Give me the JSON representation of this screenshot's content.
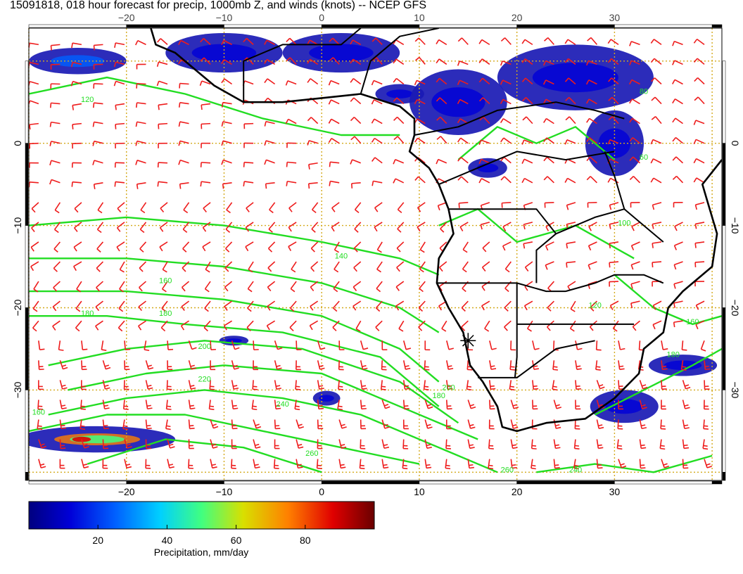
{
  "title": "15091818, 018 hour forecast for precip, 1000mb Z, and winds (knots) -- NCEP GFS",
  "map": {
    "lon_range": [
      -30,
      41
    ],
    "lat_range": [
      -41,
      14
    ],
    "lon_ticks": [
      -20,
      -10,
      0,
      10,
      20,
      30
    ],
    "lat_ticks": [
      0,
      -10,
      -20,
      -30
    ],
    "lon_tick_labels": [
      "−20",
      "−10",
      "0",
      "10",
      "20",
      "30"
    ],
    "lat_tick_labels": [
      "0",
      "−10",
      "−20",
      "−30"
    ],
    "grid": true,
    "grid_step_degrees": 10,
    "star_marker": {
      "lon": 15,
      "lat": -24
    },
    "contour_labels": [
      {
        "text": "120",
        "lon": -24,
        "lat": 5
      },
      {
        "text": "140",
        "lon": 2,
        "lat": -14
      },
      {
        "text": "160",
        "lon": -16,
        "lat": -17
      },
      {
        "text": "180",
        "lon": -24,
        "lat": -21
      },
      {
        "text": "180",
        "lon": -16,
        "lat": -21
      },
      {
        "text": "200",
        "lon": -12,
        "lat": -25
      },
      {
        "text": "220",
        "lon": -12,
        "lat": -29
      },
      {
        "text": "240",
        "lon": -4,
        "lat": -32
      },
      {
        "text": "260",
        "lon": -1,
        "lat": -38
      },
      {
        "text": "160",
        "lon": -29,
        "lat": -33
      },
      {
        "text": "200",
        "lon": 13,
        "lat": -30
      },
      {
        "text": "180",
        "lon": 12,
        "lat": -31
      },
      {
        "text": "240",
        "lon": 26,
        "lat": -40
      },
      {
        "text": "260",
        "lon": 19,
        "lat": -40
      },
      {
        "text": "180",
        "lon": 36,
        "lat": -26
      },
      {
        "text": "160",
        "lon": 38,
        "lat": -22
      },
      {
        "text": "80",
        "lon": 33,
        "lat": 6
      },
      {
        "text": "120",
        "lon": 28,
        "lat": -20
      },
      {
        "text": "60",
        "lon": 33,
        "lat": -2
      },
      {
        "text": "100",
        "lon": 31,
        "lat": -10
      }
    ],
    "colors": {
      "contour": "#22dd22",
      "wind_barbs": "#ee1c1c",
      "coastline": "#000000",
      "grid": "#d4aa1c"
    },
    "precip_areas": [
      {
        "lon": -25,
        "lat": 10,
        "rx": 5,
        "ry": 1.6,
        "intensity": 0.18
      },
      {
        "lon": -10,
        "lat": 11,
        "rx": 6,
        "ry": 2.4,
        "intensity": 0.1
      },
      {
        "lon": 2,
        "lat": 11,
        "rx": 6,
        "ry": 2.4,
        "intensity": 0.1
      },
      {
        "lon": 8,
        "lat": 6,
        "rx": 2.5,
        "ry": 1.2,
        "intensity": 0.08
      },
      {
        "lon": 14,
        "lat": 5,
        "rx": 5,
        "ry": 4,
        "intensity": 0.1
      },
      {
        "lon": 26,
        "lat": 8,
        "rx": 8,
        "ry": 4,
        "intensity": 0.12
      },
      {
        "lon": 30,
        "lat": 0,
        "rx": 3,
        "ry": 4,
        "intensity": 0.08
      },
      {
        "lon": 17,
        "lat": -3,
        "rx": 2,
        "ry": 1.2,
        "intensity": 0.06
      },
      {
        "lon": -9,
        "lat": -24,
        "rx": 1.5,
        "ry": 0.6,
        "intensity": 0.06
      },
      {
        "lon": 0.5,
        "lat": -31,
        "rx": 1.4,
        "ry": 0.9,
        "intensity": 0.06
      },
      {
        "lon": 31,
        "lat": -32,
        "rx": 3.5,
        "ry": 2,
        "intensity": 0.1
      },
      {
        "lon": 37,
        "lat": -27,
        "rx": 3.5,
        "ry": 1.3,
        "intensity": 0.1
      },
      {
        "lon": -23,
        "lat": -36,
        "rx": 8,
        "ry": 1.6,
        "intensity": 0.75
      }
    ]
  },
  "colorbar": {
    "range": [
      0,
      100
    ],
    "ticks": [
      20,
      40,
      60,
      80
    ],
    "tick_labels": [
      "20",
      "40",
      "60",
      "80"
    ],
    "label": "Precipitation, mm/day"
  }
}
